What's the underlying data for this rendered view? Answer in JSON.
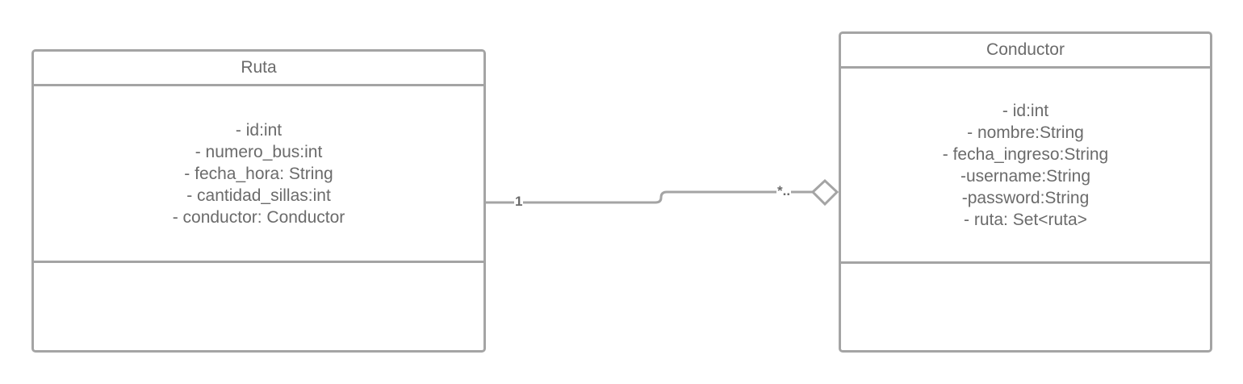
{
  "classes": {
    "ruta": {
      "name": "Ruta",
      "attributes": [
        "- id:int",
        "- numero_bus:int",
        "- fecha_hora: String",
        "- cantidad_sillas:int",
        "- conductor: Conductor"
      ]
    },
    "conductor": {
      "name": "Conductor",
      "attributes": [
        "- id:int",
        "- nombre:String",
        "- fecha_ingreso:String",
        "-username:String",
        "-password:String",
        "- ruta: Set<ruta>"
      ]
    }
  },
  "association": {
    "type": "aggregation",
    "ruta_multiplicity": "1",
    "conductor_multiplicity": "*..",
    "line_color": "#a4a4a4"
  }
}
